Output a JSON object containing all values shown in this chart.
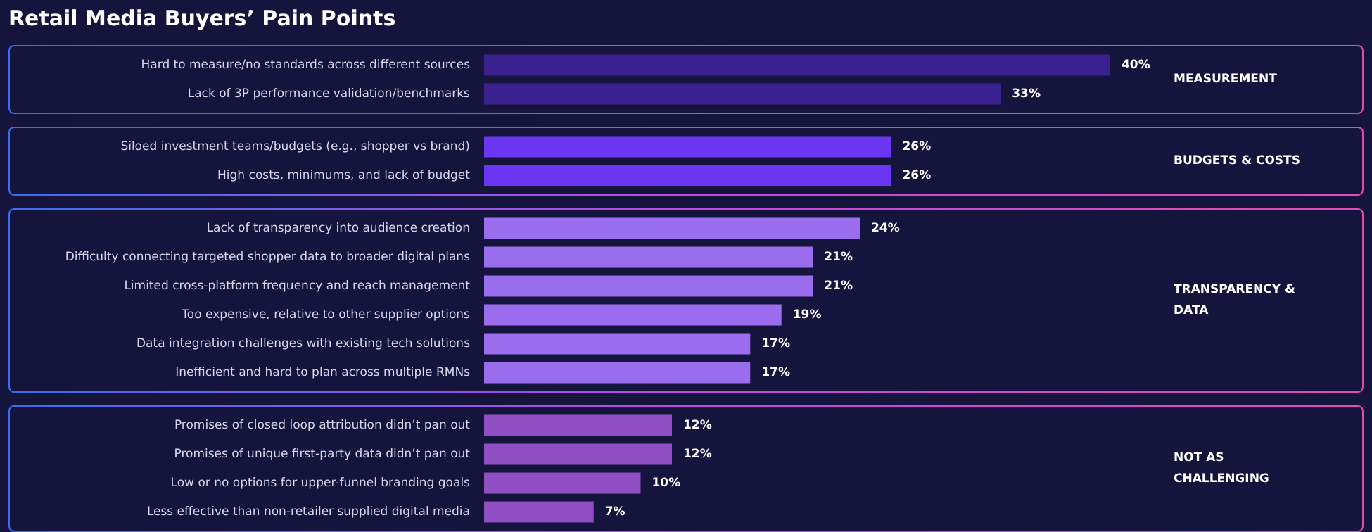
{
  "chart_data": [
    {
      "type": "bar",
      "orientation": "horizontal",
      "title": "Retail Media Buyers’ Pain Points",
      "categories": [
        "Hard to measure/no standards across different sources",
        "Lack of 3P performance validation/benchmarks"
      ],
      "values": [
        40,
        33
      ],
      "value_labels": [
        "40%",
        "33%"
      ],
      "color": "#3b2090",
      "annotations": [
        "MEASUREMENT"
      ]
    },
    {
      "type": "bar",
      "orientation": "horizontal",
      "categories": [
        "Siloed investment teams/budgets (e.g., shopper vs brand)",
        "High costs, minimums, and lack of budget"
      ],
      "values": [
        26,
        26
      ],
      "value_labels": [
        "26%",
        "26%"
      ],
      "color": "#6a36f2",
      "annotations": [
        "BUDGETS & COSTS"
      ]
    },
    {
      "type": "bar",
      "orientation": "horizontal",
      "categories": [
        "Lack of transparency into audience creation",
        "Difficulty connecting targeted shopper data to broader digital plans",
        "Limited cross-platform frequency and reach management",
        "Too expensive, relative to other supplier options",
        "Data integration challenges with existing tech solutions",
        "Inefficient and hard to plan across multiple RMNs"
      ],
      "values": [
        24,
        21,
        21,
        19,
        17,
        17
      ],
      "value_labels": [
        "24%",
        "21%",
        "21%",
        "19%",
        "17%",
        "17%"
      ],
      "color": "#9a6cee",
      "annotations": [
        "TRANSPARENCY & DATA"
      ]
    },
    {
      "type": "bar",
      "orientation": "horizontal",
      "categories": [
        "Promises of closed loop attribution didn’t pan out",
        "Promises of unique first-party data didn’t pan out",
        "Low or no options for upper-funnel branding goals",
        "Less effective than non-retailer supplied digital media"
      ],
      "values": [
        12,
        12,
        10,
        7
      ],
      "value_labels": [
        "12%",
        "12%",
        "10%",
        "7%"
      ],
      "color": "#8f4fc2",
      "annotations": [
        "NOT AS CHALLENGING"
      ]
    }
  ]
}
